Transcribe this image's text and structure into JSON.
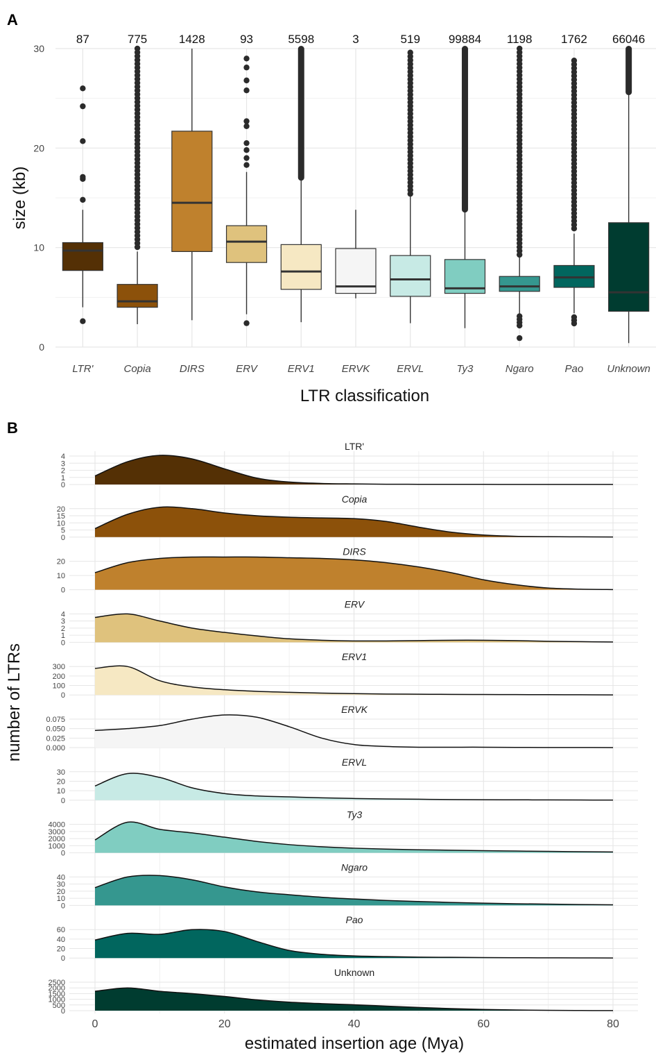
{
  "panels": {
    "a": "A",
    "b": "B"
  },
  "chart_data": [
    {
      "type": "box",
      "xlabel": "LTR classification",
      "ylabel": "size (kb)",
      "ylim": [
        0,
        30
      ],
      "yticks": [
        0,
        10,
        20,
        30
      ],
      "grid": true,
      "categories": [
        "LTR'",
        "Copia",
        "DIRS",
        "ERV",
        "ERV1",
        "ERVK",
        "ERVL",
        "Ty3",
        "Ngaro",
        "Pao",
        "Unknown"
      ],
      "counts": [
        "87",
        "775",
        "1428",
        "93",
        "5598",
        "3",
        "519",
        "99884",
        "1198",
        "1762",
        "66046"
      ],
      "colors": [
        "#543005",
        "#8c510a",
        "#bf812d",
        "#dfc27d",
        "#f6e8c3",
        "#f5f5f5",
        "#c7eae5",
        "#80cdc1",
        "#35978f",
        "#01665e",
        "#003c30"
      ],
      "boxes": [
        {
          "lo": 4.0,
          "q1": 7.7,
          "med": 9.7,
          "q3": 10.5,
          "hi": 13.8,
          "outliers": [
            2.6,
            14.8,
            16.9,
            17.1,
            20.7,
            24.2,
            26.0
          ]
        },
        {
          "lo": 2.3,
          "q1": 4.0,
          "med": 4.6,
          "q3": 6.3,
          "hi": 9.6,
          "outliers_range": [
            9.8,
            30
          ],
          "outliers": []
        },
        {
          "lo": 2.7,
          "q1": 9.6,
          "med": 14.5,
          "q3": 21.7,
          "hi": 30,
          "outliers": []
        },
        {
          "lo": 3.3,
          "q1": 8.5,
          "med": 10.6,
          "q3": 12.2,
          "hi": 17.6,
          "outliers": [
            2.4,
            18.3,
            19.0,
            19.8,
            20.5,
            22.2,
            22.7,
            25.8,
            26.8,
            28.1,
            29.0
          ]
        },
        {
          "lo": 2.5,
          "q1": 5.8,
          "med": 7.6,
          "q3": 10.3,
          "hi": 16.9,
          "outliers_range": [
            17.0,
            30
          ],
          "outliers": []
        },
        {
          "lo": 4.9,
          "q1": 5.4,
          "med": 6.1,
          "q3": 9.9,
          "hi": 13.8,
          "outliers": []
        },
        {
          "lo": 2.4,
          "q1": 5.1,
          "med": 6.8,
          "q3": 9.2,
          "hi": 15.2,
          "outliers_range": [
            15.4,
            29.6
          ],
          "outliers": []
        },
        {
          "lo": 1.9,
          "q1": 5.4,
          "med": 5.9,
          "q3": 8.8,
          "hi": 13.6,
          "outliers_range": [
            13.8,
            30
          ],
          "outliers": []
        },
        {
          "lo": 3.0,
          "q1": 5.6,
          "med": 6.1,
          "q3": 7.1,
          "hi": 9.0,
          "outliers_range": [
            9.2,
            30
          ],
          "outliers_low_range": [
            2.0,
            3.1
          ],
          "outliers": [
            0.9
          ]
        },
        {
          "lo": 3.4,
          "q1": 6.0,
          "med": 7.0,
          "q3": 8.2,
          "hi": 11.4,
          "outliers_range": [
            11.6,
            28.8
          ],
          "outliers_low_range": [
            2.1,
            3.0
          ],
          "outliers": []
        },
        {
          "lo": 0.4,
          "q1": 3.6,
          "med": 5.5,
          "q3": 12.5,
          "hi": 25.4,
          "outliers_range": [
            25.6,
            30
          ],
          "outliers": []
        }
      ]
    },
    {
      "type": "area",
      "xlabel": "estimated insertion age (Mya)",
      "ylabel": "number of LTRs",
      "xlim": [
        0,
        80
      ],
      "xticks": [
        0,
        20,
        40,
        60,
        80
      ],
      "grid": true,
      "x": [
        0,
        5,
        10,
        15,
        20,
        25,
        30,
        35,
        40,
        45,
        50,
        55,
        60,
        65,
        70,
        75,
        80
      ],
      "series": [
        {
          "name": "LTR'",
          "color": "#543005",
          "ymax": 4,
          "yticks": [
            0,
            1,
            2,
            3,
            4
          ],
          "values": [
            1.2,
            3.2,
            4.1,
            3.6,
            2.2,
            0.9,
            0.35,
            0.15,
            0.08,
            0.04,
            0.03,
            0.02,
            0.02,
            0.01,
            0.01,
            0.01,
            0.01
          ]
        },
        {
          "name": "Copia",
          "color": "#8c510a",
          "ymax": 20,
          "yticks": [
            0,
            5,
            10,
            15,
            20
          ],
          "values": [
            6,
            16,
            21,
            20,
            17,
            15,
            14,
            13.5,
            13,
            11,
            7,
            3.5,
            1.5,
            0.6,
            0.3,
            0.2,
            0.1
          ]
        },
        {
          "name": "DIRS",
          "color": "#bf812d",
          "ymax": 20,
          "yticks": [
            0,
            10,
            20
          ],
          "values": [
            12,
            19,
            22,
            23,
            23,
            23,
            22.5,
            22,
            21,
            19,
            16,
            12,
            7,
            3.5,
            1.2,
            0.4,
            0.1
          ]
        },
        {
          "name": "ERV",
          "color": "#dfc27d",
          "ymax": 4,
          "yticks": [
            0,
            1,
            2,
            3,
            4
          ],
          "values": [
            3.5,
            4.0,
            3.0,
            2.0,
            1.4,
            0.9,
            0.5,
            0.3,
            0.2,
            0.2,
            0.25,
            0.3,
            0.3,
            0.25,
            0.15,
            0.1,
            0.05
          ]
        },
        {
          "name": "ERV1",
          "color": "#f6e8c3",
          "ymax": 300,
          "yticks": [
            0,
            100,
            200,
            300
          ],
          "values": [
            280,
            300,
            150,
            85,
            55,
            38,
            28,
            20,
            14,
            10,
            8,
            6,
            5,
            4,
            3,
            2,
            1
          ]
        },
        {
          "name": "ERVK",
          "color": "#f5f5f5",
          "ymax": 0.075,
          "yticks": [
            0,
            0.025,
            0.05,
            0.075
          ],
          "yticklabels": [
            "0.000",
            "0.025",
            "0.050",
            "0.075"
          ],
          "values": [
            0.045,
            0.05,
            0.058,
            0.075,
            0.086,
            0.08,
            0.055,
            0.025,
            0.008,
            0.003,
            0.001,
            0.001,
            0.001,
            0.0005,
            0.0003,
            0.0002,
            0.0001
          ]
        },
        {
          "name": "ERVL",
          "color": "#c7eae5",
          "ymax": 30,
          "yticks": [
            0,
            10,
            20,
            30
          ],
          "values": [
            15,
            28,
            24,
            13,
            7,
            4.5,
            3.5,
            2.5,
            1.8,
            1.3,
            1.0,
            0.7,
            0.5,
            0.4,
            0.3,
            0.2,
            0.1
          ]
        },
        {
          "name": "Ty3",
          "color": "#80cdc1",
          "ymax": 4000,
          "yticks": [
            0,
            1000,
            2000,
            3000,
            4000
          ],
          "values": [
            1800,
            4300,
            3300,
            2800,
            2200,
            1600,
            1150,
            850,
            650,
            520,
            430,
            360,
            300,
            250,
            200,
            160,
            120
          ]
        },
        {
          "name": "Ngaro",
          "color": "#35978f",
          "ymax": 40,
          "yticks": [
            0,
            10,
            20,
            30,
            40
          ],
          "values": [
            25,
            40,
            42,
            36,
            26,
            19,
            15,
            11.5,
            9,
            7,
            5.5,
            4.2,
            3.2,
            2.4,
            1.8,
            1.3,
            0.9
          ]
        },
        {
          "name": "Pao",
          "color": "#01665e",
          "ymax": 60,
          "yticks": [
            0,
            20,
            40,
            60
          ],
          "values": [
            38,
            52,
            50,
            60,
            56,
            35,
            16,
            8,
            4.5,
            3,
            2,
            1.5,
            1.0,
            0.7,
            0.5,
            0.3,
            0.2
          ]
        },
        {
          "name": "Unknown",
          "color": "#003c30",
          "ymax": 2500,
          "yticks": [
            0,
            500,
            1000,
            1500,
            2000,
            2500
          ],
          "values": [
            1700,
            2000,
            1700,
            1500,
            1250,
            950,
            750,
            620,
            520,
            400,
            280,
            180,
            110,
            60,
            30,
            15,
            5
          ]
        }
      ]
    }
  ]
}
